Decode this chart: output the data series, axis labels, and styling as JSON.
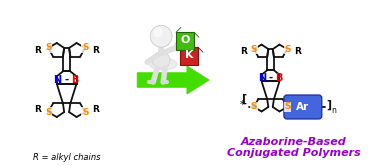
{
  "bg_color": "#ffffff",
  "arrow_color": "#44dd00",
  "arrow_edge_color": "#228800",
  "text_azaborine_line1": "Azaborine-Based",
  "text_azaborine_line2": "Conjugated Polymers",
  "text_azaborine_color": "#9900cc",
  "text_r_alkyl": "R = alkyl chains",
  "text_r_alkyl_color": "#000000",
  "label_N_color": "#0000ee",
  "label_B_color": "#ee0000",
  "label_S_color": "#ff8800",
  "label_R_color": "#000000",
  "Ar_box_facecolor": "#4466dd",
  "Ar_box_edgecolor": "#2233aa",
  "Ar_text_color": "#ffffff",
  "figsize": [
    3.78,
    1.66
  ],
  "dpi": 100,
  "lw": 1.3,
  "molecule_lw": 1.3
}
